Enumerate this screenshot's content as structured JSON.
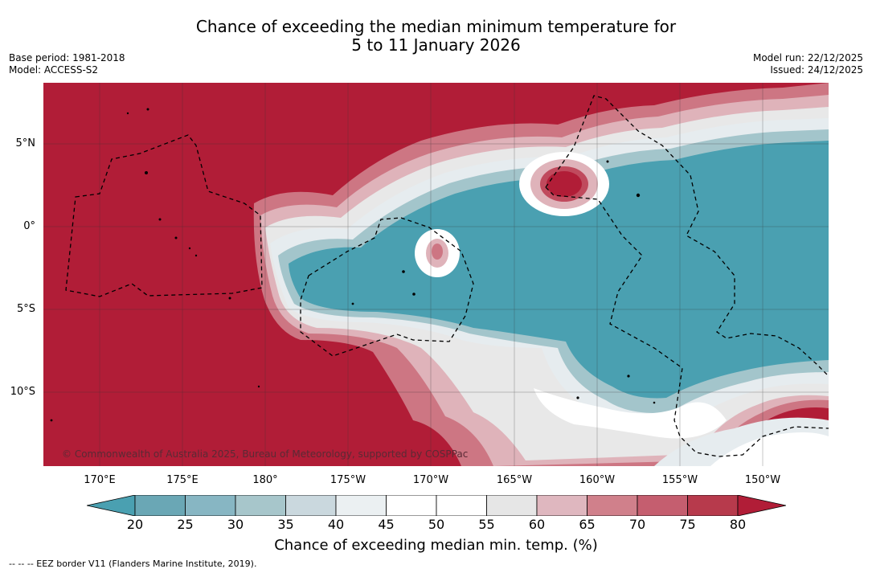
{
  "title": {
    "line1": "Chance of exceeding the median minimum temperature for",
    "line2": "5 to 11 January 2026"
  },
  "meta_left": {
    "base_period": "Base period: 1981-2018",
    "model": "Model: ACCESS-S2"
  },
  "meta_right": {
    "model_run": "Model run: 22/12/2025",
    "issued": "Issued: 24/12/2025"
  },
  "map": {
    "lat_labels": [
      "5°N",
      "0°",
      "5°S",
      "10°S"
    ],
    "lon_labels": [
      "170°E",
      "175°E",
      "180°",
      "175°W",
      "170°W",
      "165°W",
      "160°W",
      "155°W",
      "150°W"
    ],
    "credit": "© Commonwealth of Australia 2025, Bureau of Meteorology, supported by COSPPac",
    "colors": {
      "high": "#b11d37",
      "c75": "#c04a5d",
      "c70": "#cd7683",
      "c65": "#dfb3ba",
      "c60": "#e8e8e8",
      "neutral": "#ffffff",
      "c40": "#e6ecef",
      "c35": "#c6d6db",
      "c30": "#a3c5cb",
      "c25": "#79b2be",
      "low": "#4aa0b1"
    }
  },
  "colorbar": {
    "ticks": [
      "20",
      "25",
      "30",
      "35",
      "40",
      "45",
      "50",
      "55",
      "60",
      "65",
      "70",
      "75",
      "80"
    ],
    "label": "Chance of exceeding median min. temp. (%)",
    "colors": [
      "#6aa7b5",
      "#87b6c3",
      "#a7c6cb",
      "#cad8de",
      "#ebf0f2",
      "#ffffff",
      "#ffffff",
      "#e6e6e6",
      "#dfb7bf",
      "#d0808b",
      "#c55e6f",
      "#b73a4c"
    ],
    "low_extend_color": "#4aa0b1",
    "high_extend_color": "#b11d37"
  },
  "footer": "--  --  -- EEZ border V11 (Flanders Marine Institute, 2019)."
}
